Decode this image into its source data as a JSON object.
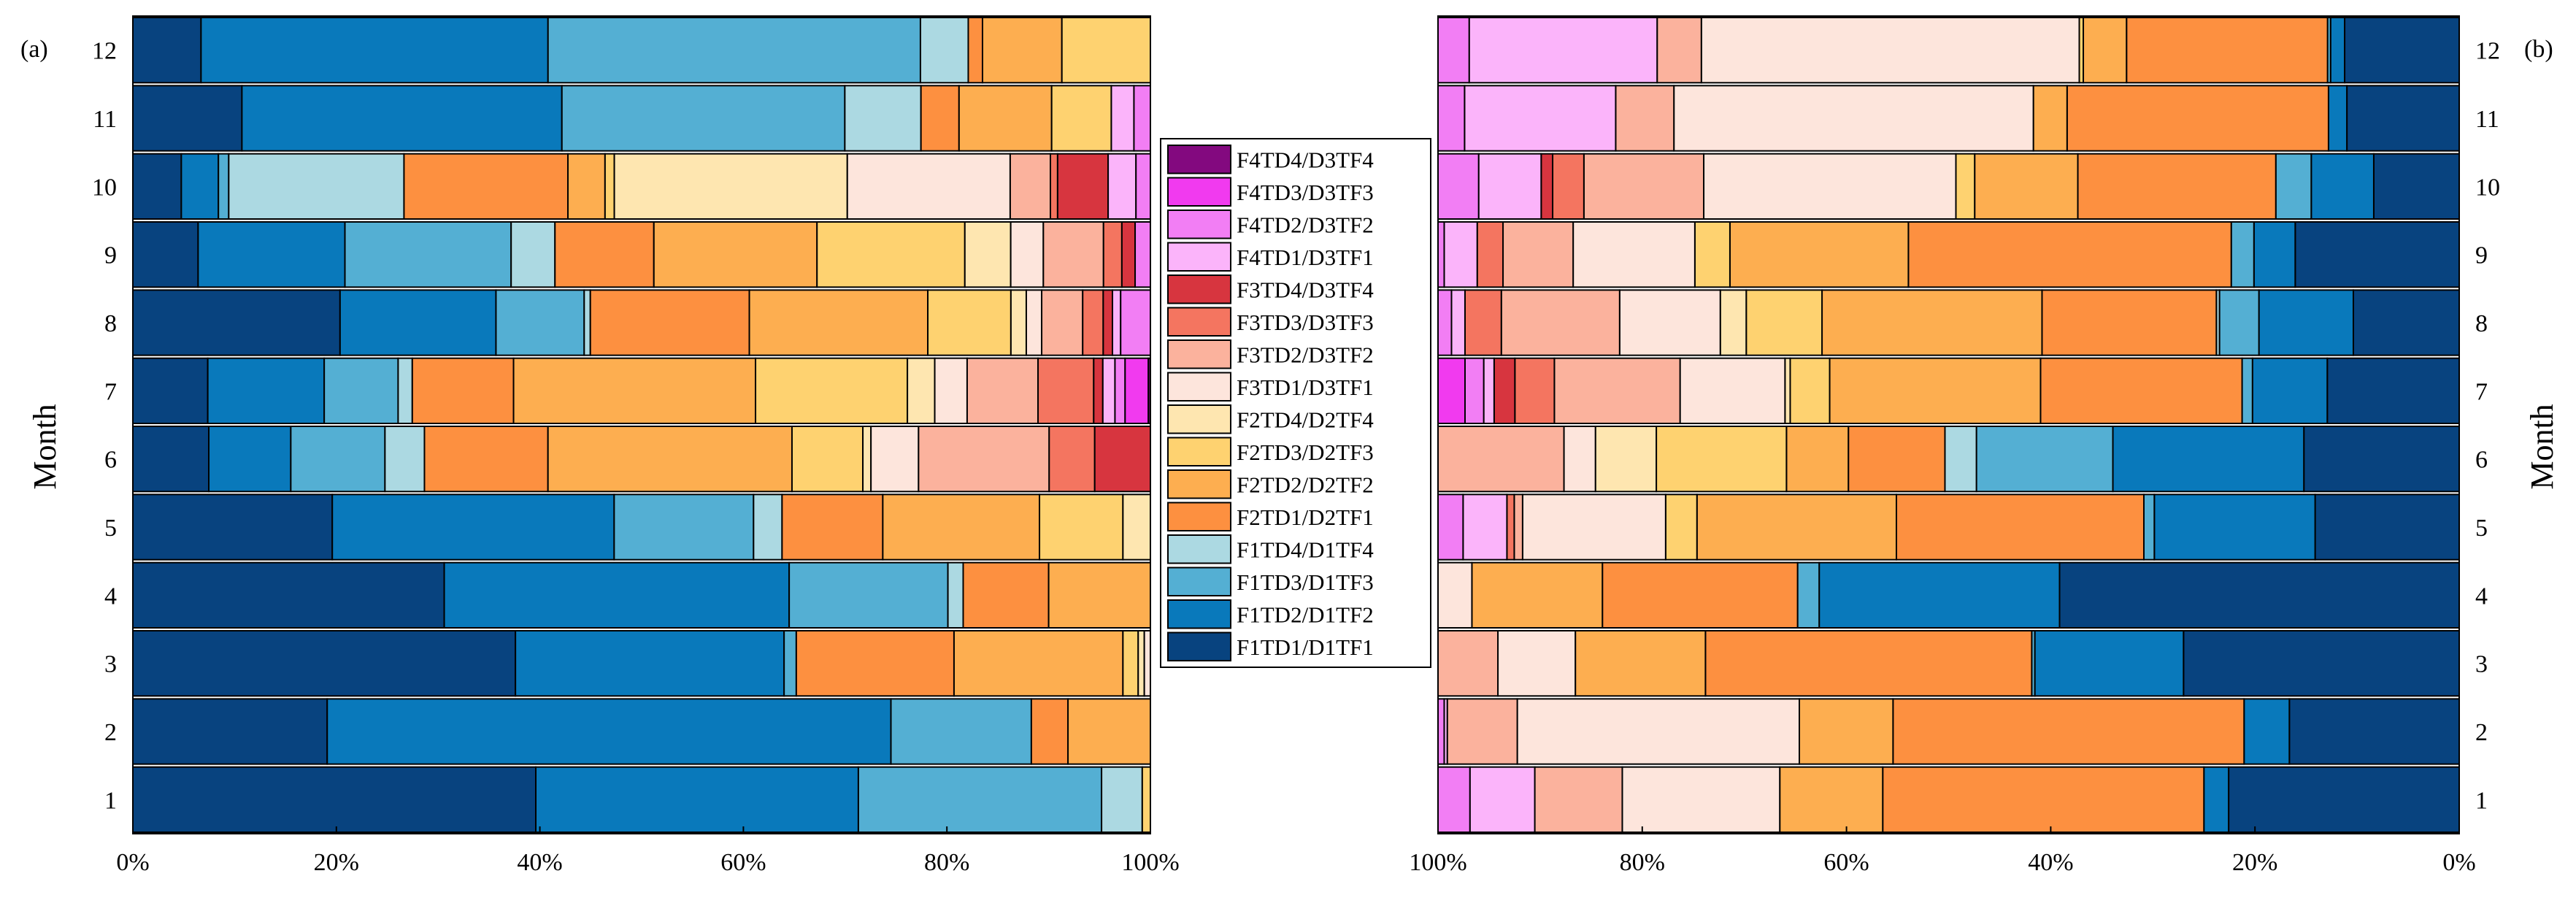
{
  "chart_data": {
    "type": "bar",
    "orientation": "horizontal-stacked-100",
    "ylabel": "Month",
    "categories": [
      "1",
      "2",
      "3",
      "4",
      "5",
      "6",
      "7",
      "8",
      "9",
      "10",
      "11",
      "12"
    ],
    "x_ticks_left": [
      "0%",
      "20%",
      "40%",
      "60%",
      "80%",
      "100%"
    ],
    "x_ticks_right": [
      "100%",
      "80%",
      "60%",
      "40%",
      "20%",
      "0%"
    ],
    "colors": {
      "F1TD1/D1TF1": "#08437f",
      "F1TD2/D1TF2": "#0979bb",
      "F1TD3/D1TF3": "#54afd3",
      "F1TD4/D1TF4": "#acd9e2",
      "F2TD1/D2TF1": "#fd9040",
      "F2TD2/D2TF2": "#fdae50",
      "F2TD3/D2TF3": "#fed270",
      "F2TD4/D2TF4": "#fee6b0",
      "F3TD1/D3TF1": "#fde5dc",
      "F3TD2/D3TF2": "#fbb29d",
      "F3TD3/D3TF3": "#f47560",
      "F3TD4/D3TF4": "#d7353f",
      "F4TD1/D3TF1": "#fbb4fa",
      "F4TD2/D3TF2": "#f27ef4",
      "F4TD3/D3TF3": "#f13aef",
      "F4TD4/D3TF4": "#83097f"
    },
    "legend_display_order": [
      "F4TD4/D3TF4",
      "F4TD3/D3TF3",
      "F4TD2/D3TF2",
      "F4TD1/D3TF1",
      "F3TD4/D3TF4",
      "F3TD3/D3TF3",
      "F3TD2/D3TF2",
      "F3TD1/D3TF1",
      "F2TD4/D2TF4",
      "F2TD3/D2TF3",
      "F2TD2/D2TF2",
      "F2TD1/D2TF1",
      "F1TD4/D1TF4",
      "F1TD3/D1TF3",
      "F1TD2/D1TF2",
      "F1TD1/D1TF1"
    ],
    "panels": [
      {
        "label": "(a)",
        "direction": "left-to-right",
        "series_order": [
          "F1TD1/D1TF1",
          "F1TD2/D1TF2",
          "F1TD3/D1TF3",
          "F1TD4/D1TF4",
          "F2TD1/D2TF1",
          "F2TD2/D2TF2",
          "F2TD3/D2TF3",
          "F2TD4/D2TF4",
          "F3TD1/D3TF1",
          "F3TD2/D3TF2",
          "F3TD3/D3TF3",
          "F3TD4/D3TF4",
          "F4TD1/D3TF1",
          "F4TD2/D3TF2",
          "F4TD3/D3TF3",
          "F4TD4/D3TF4"
        ],
        "series": [
          {
            "name": "F1TD1/D1TF1",
            "values": [
              39.6,
              19.1,
              37.6,
              30.6,
              19.6,
              7.5,
              7.4,
              20.2,
              6.4,
              4.7,
              10.6,
              6.7
            ]
          },
          {
            "name": "F1TD2/D1TF2",
            "values": [
              31.7,
              55.4,
              26.4,
              33.9,
              27.7,
              8.1,
              11.5,
              15.2,
              14.4,
              3.6,
              31.1,
              34.1
            ]
          },
          {
            "name": "F1TD3/D1TF3",
            "values": [
              23.9,
              13.8,
              1.2,
              15.6,
              13.7,
              9.3,
              7.3,
              8.6,
              16.3,
              1.0,
              27.5,
              36.6
            ]
          },
          {
            "name": "F1TD4/D1TF4",
            "values": [
              4.0,
              0,
              0,
              1.5,
              2.8,
              3.9,
              1.4,
              0.6,
              4.3,
              17.0,
              7.4,
              4.7
            ]
          },
          {
            "name": "F2TD1/D2TF1",
            "values": [
              0,
              3.6,
              15.5,
              8.4,
              9.9,
              12.2,
              10.0,
              15.5,
              9.7,
              15.9,
              3.7,
              1.4
            ]
          },
          {
            "name": "F2TD2/D2TF2",
            "values": [
              0,
              8.1,
              16.6,
              10.0,
              15.4,
              24.1,
              23.9,
              17.4,
              16.0,
              3.6,
              9.0,
              7.8
            ]
          },
          {
            "name": "F2TD3/D2TF3",
            "values": [
              0.8,
              0,
              1.5,
              0,
              8.2,
              7.0,
              15.0,
              8.1,
              14.5,
              0.9,
              5.8,
              8.7
            ]
          },
          {
            "name": "F2TD4/D2TF4",
            "values": [
              0,
              0,
              0.6,
              0,
              2.7,
              0.8,
              2.7,
              1.5,
              4.5,
              22.6,
              0,
              0
            ]
          },
          {
            "name": "F3TD1/D3TF1",
            "values": [
              0,
              0,
              0.6,
              0,
              0,
              4.7,
              3.2,
              1.5,
              3.2,
              15.8,
              0,
              0
            ]
          },
          {
            "name": "F3TD2/D3TF2",
            "values": [
              0,
              0,
              0,
              0,
              0,
              12.9,
              7.0,
              4.0,
              5.9,
              3.9,
              0,
              0
            ]
          },
          {
            "name": "F3TD3/D3TF3",
            "values": [
              0,
              0,
              0,
              0,
              0,
              4.5,
              5.5,
              2.0,
              1.8,
              0.7,
              0,
              0
            ]
          },
          {
            "name": "F3TD4/D3TF4",
            "values": [
              0,
              0,
              0,
              0,
              0,
              5.5,
              0.9,
              0.9,
              1.3,
              4.9,
              0,
              0
            ]
          },
          {
            "name": "F4TD1/D3TF1",
            "values": [
              0,
              0,
              0,
              0,
              0,
              0,
              1.2,
              0.8,
              0,
              2.7,
              2.2,
              0
            ]
          },
          {
            "name": "F4TD2/D3TF2",
            "values": [
              0,
              0,
              0,
              0,
              0,
              0,
              1.0,
              2.9,
              1.5,
              1.4,
              1.6,
              0
            ]
          },
          {
            "name": "F4TD3/D3TF3",
            "values": [
              0,
              0,
              0,
              0,
              0,
              0,
              2.3,
              0,
              0,
              0,
              0,
              0
            ]
          },
          {
            "name": "F4TD4/D3TF4",
            "values": [
              0,
              0,
              0,
              0,
              0,
              0,
              0.2,
              0,
              0,
              0,
              0,
              0
            ]
          }
        ]
      },
      {
        "label": "(b)",
        "direction": "right-to-left",
        "series_order": [
          "F1TD1/D1TF1",
          "F1TD2/D1TF2",
          "F1TD3/D1TF3",
          "F1TD4/D1TF4",
          "F2TD1/D2TF1",
          "F2TD2/D2TF2",
          "F2TD3/D2TF3",
          "F2TD4/D2TF4",
          "F3TD1/D3TF1",
          "F3TD2/D3TF2",
          "F3TD3/D3TF3",
          "F3TD4/D3TF4",
          "F4TD1/D3TF1",
          "F4TD2/D3TF2",
          "F4TD3/D3TF3",
          "F4TD4/D3TF4"
        ],
        "series": [
          {
            "name": "F1TD1/D1TF1",
            "values": [
              22.4,
              16.5,
              26.7,
              38.9,
              13.8,
              14.8,
              12.7,
              10.2,
              15.9,
              8.2,
              11.0,
              11.4
            ]
          },
          {
            "name": "F1TD2/D1TF2",
            "values": [
              2.4,
              4.4,
              14.4,
              23.4,
              15.4,
              18.2,
              7.2,
              9.1,
              4.0,
              6.0,
              1.8,
              1.4
            ]
          },
          {
            "name": "F1TD3/D1TF3",
            "values": [
              0,
              0,
              0.3,
              2.1,
              1.0,
              13.0,
              1.0,
              3.8,
              2.2,
              3.4,
              0,
              0.3
            ]
          },
          {
            "name": "F1TD4/D1TF4",
            "values": [
              0,
              0,
              0,
              0,
              0,
              3.0,
              0,
              0.3,
              0,
              0,
              0,
              0
            ]
          },
          {
            "name": "F2TD1/D2TF1",
            "values": [
              31.2,
              34.1,
              31.6,
              19.0,
              23.7,
              9.2,
              19.4,
              16.8,
              31.3,
              19.0,
              25.6,
              20.0
            ]
          },
          {
            "name": "F2TD2/D2TF2",
            "values": [
              10.0,
              9.1,
              12.6,
              12.7,
              19.1,
              5.9,
              20.3,
              21.2,
              17.3,
              9.9,
              3.3,
              4.3
            ]
          },
          {
            "name": "F2TD3/D2TF3",
            "values": [
              0,
              0,
              0,
              0,
              3.0,
              12.4,
              3.8,
              7.3,
              3.4,
              1.8,
              0,
              0.4
            ]
          },
          {
            "name": "F2TD4/D2TF4",
            "values": [
              0,
              0,
              0,
              0,
              0,
              5.8,
              0.5,
              2.5,
              0,
              0,
              0,
              0
            ]
          },
          {
            "name": "F3TD1/D3TF1",
            "values": [
              15.3,
              27.4,
              7.5,
              3.3,
              13.7,
              3.0,
              10.1,
              9.7,
              11.8,
              24.2,
              35.2,
              37.6
            ]
          },
          {
            "name": "F3TD2/D3TF2",
            "values": [
              8.5,
              6.8,
              5.8,
              0,
              0.8,
              12.0,
              12.1,
              11.4,
              6.8,
              11.5,
              5.7,
              4.4
            ]
          },
          {
            "name": "F3TD3/D3TF3",
            "values": [
              0,
              0,
              0,
              0,
              0.7,
              0,
              3.8,
              3.5,
              2.5,
              3.0,
              0,
              0
            ]
          },
          {
            "name": "F3TD4/D3TF4",
            "values": [
              0,
              0,
              0,
              0,
              0,
              0,
              2.0,
              0,
              0,
              1.1,
              0,
              0
            ]
          },
          {
            "name": "F4TD1/D3TF1",
            "values": [
              6.3,
              0.3,
              0,
              0,
              4.2,
              0,
              1.0,
              1.3,
              3.2,
              6.0,
              14.8,
              18.7
            ]
          },
          {
            "name": "F4TD2/D3TF2",
            "values": [
              3.1,
              0.6,
              0,
              0,
              2.4,
              0,
              1.8,
              1.3,
              0.6,
              3.9,
              2.6,
              3.1
            ]
          },
          {
            "name": "F4TD3/D3TF3",
            "values": [
              0,
              0,
              0,
              0,
              0,
              0,
              2.6,
              0,
              0,
              0,
              0,
              0
            ]
          },
          {
            "name": "F4TD4/D3TF4",
            "values": [
              0,
              0,
              0,
              0,
              0,
              0,
              0,
              0,
              0,
              0,
              0,
              0
            ]
          }
        ]
      }
    ]
  }
}
